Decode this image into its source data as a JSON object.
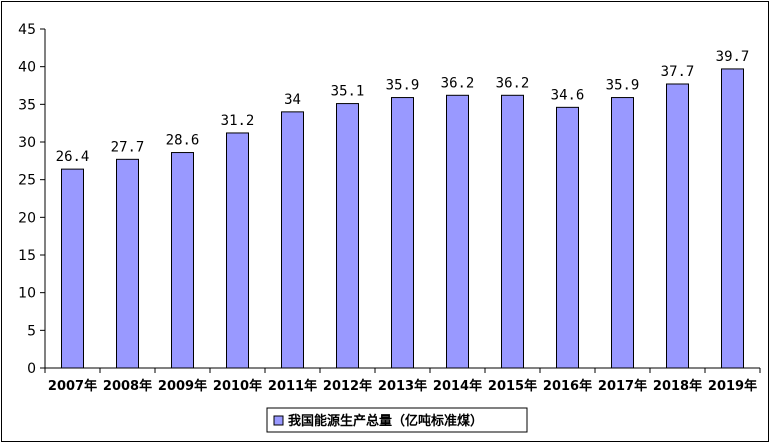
{
  "chart_data": {
    "type": "bar",
    "categories": [
      "2007年",
      "2008年",
      "2009年",
      "2010年",
      "2011年",
      "2012年",
      "2013年",
      "2014年",
      "2015年",
      "2016年",
      "2017年",
      "2018年",
      "2019年"
    ],
    "series": [
      {
        "name": "我国能源生产总量（亿吨标准煤）",
        "values": [
          26.4,
          27.7,
          28.6,
          31.2,
          34,
          35.1,
          35.9,
          36.2,
          36.2,
          34.6,
          35.9,
          37.7,
          39.7
        ],
        "labels": [
          "26.4",
          "27.7",
          "28.6",
          "31.2",
          "34",
          "35.1",
          "35.9",
          "36.2",
          "36.2",
          "34.6",
          "35.9",
          "37.7",
          "39.7"
        ],
        "color": "#9999ff"
      }
    ],
    "yticks": [
      "0",
      "5",
      "10",
      "15",
      "20",
      "25",
      "30",
      "35",
      "40",
      "45"
    ],
    "ylim": [
      0,
      45
    ],
    "grid": false,
    "legend_position": "bottom-center",
    "xlabel": "",
    "ylabel": ""
  }
}
